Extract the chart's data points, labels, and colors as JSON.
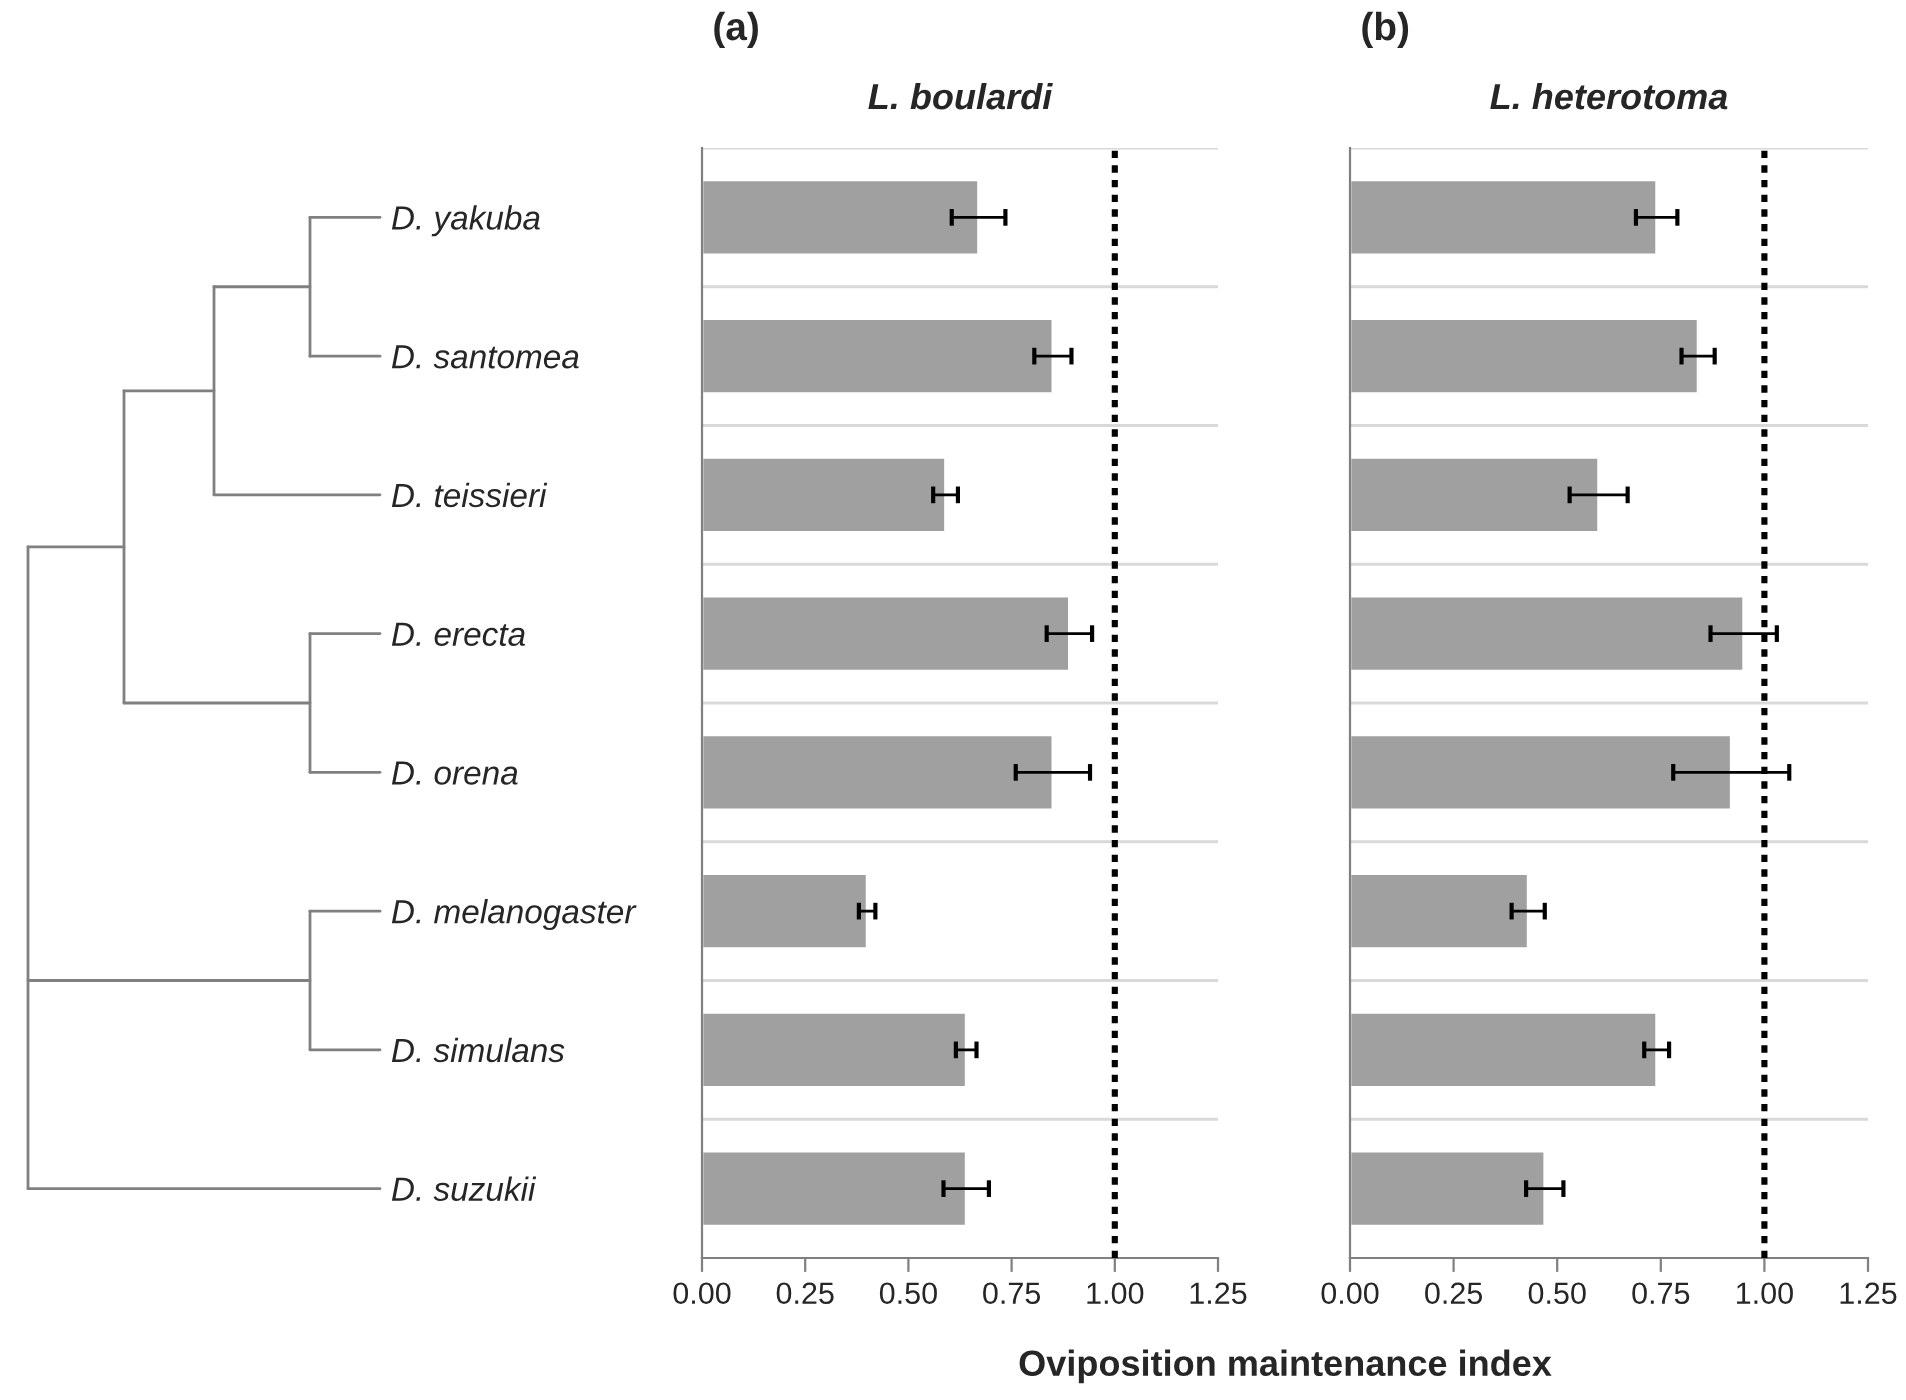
{
  "chart_data": [
    {
      "type": "bar",
      "orientation": "horizontal",
      "title": "(a)",
      "subtitle": "L. boulardi",
      "xlabel": "Oviposition maintenance index",
      "categories": [
        "D. yakuba",
        "D. santomea",
        "D. teissieri",
        "D. erecta",
        "D. orena",
        "D. melanogaster",
        "D. simulans",
        "D. suzukii"
      ],
      "series": [
        {
          "color": "#a0a0a0",
          "values": [
            0.67,
            0.85,
            0.59,
            0.89,
            0.85,
            0.4,
            0.64,
            0.64
          ],
          "errors": [
            0.065,
            0.045,
            0.03,
            0.055,
            0.09,
            0.02,
            0.025,
            0.055
          ]
        }
      ],
      "xlim": [
        0,
        1.25
      ],
      "xticks": [
        {
          "value": 0,
          "label": "0.00"
        },
        {
          "value": 0.25,
          "label": "0.25"
        },
        {
          "value": 0.5,
          "label": "0.50"
        },
        {
          "value": 0.75,
          "label": "0.75"
        },
        {
          "value": 1,
          "label": "1.00"
        },
        {
          "value": 1.25,
          "label": "1.25"
        }
      ],
      "ref_lines": [
        {
          "axis": "x",
          "value": 1,
          "color": "#000000",
          "line_style": "dotted"
        }
      ],
      "grid": "y",
      "legend": false
    },
    {
      "type": "bar",
      "orientation": "horizontal",
      "title": "(b)",
      "subtitle": "L. heterotoma",
      "categories": [
        null,
        null,
        null,
        null,
        null,
        null,
        null,
        null
      ],
      "series": [
        {
          "color": "#a0a0a0",
          "values": [
            0.74,
            0.84,
            0.6,
            0.95,
            0.92,
            0.43,
            0.74,
            0.47
          ],
          "errors": [
            0.05,
            0.04,
            0.07,
            0.08,
            0.14,
            0.04,
            0.03,
            0.045
          ]
        }
      ],
      "xlim": [
        0,
        1.25
      ],
      "xticks": [
        {
          "value": 0,
          "label": "0.00"
        },
        {
          "value": 0.25,
          "label": "0.25"
        },
        {
          "value": 0.5,
          "label": "0.50"
        },
        {
          "value": 0.75,
          "label": "0.75"
        },
        {
          "value": 1,
          "label": "1.00"
        },
        {
          "value": 1.25,
          "label": "1.25"
        }
      ],
      "ref_lines": [
        {
          "axis": "x",
          "value": 1,
          "color": "#000000",
          "line_style": "dotted"
        }
      ],
      "grid": "y",
      "legend": false
    }
  ]
}
